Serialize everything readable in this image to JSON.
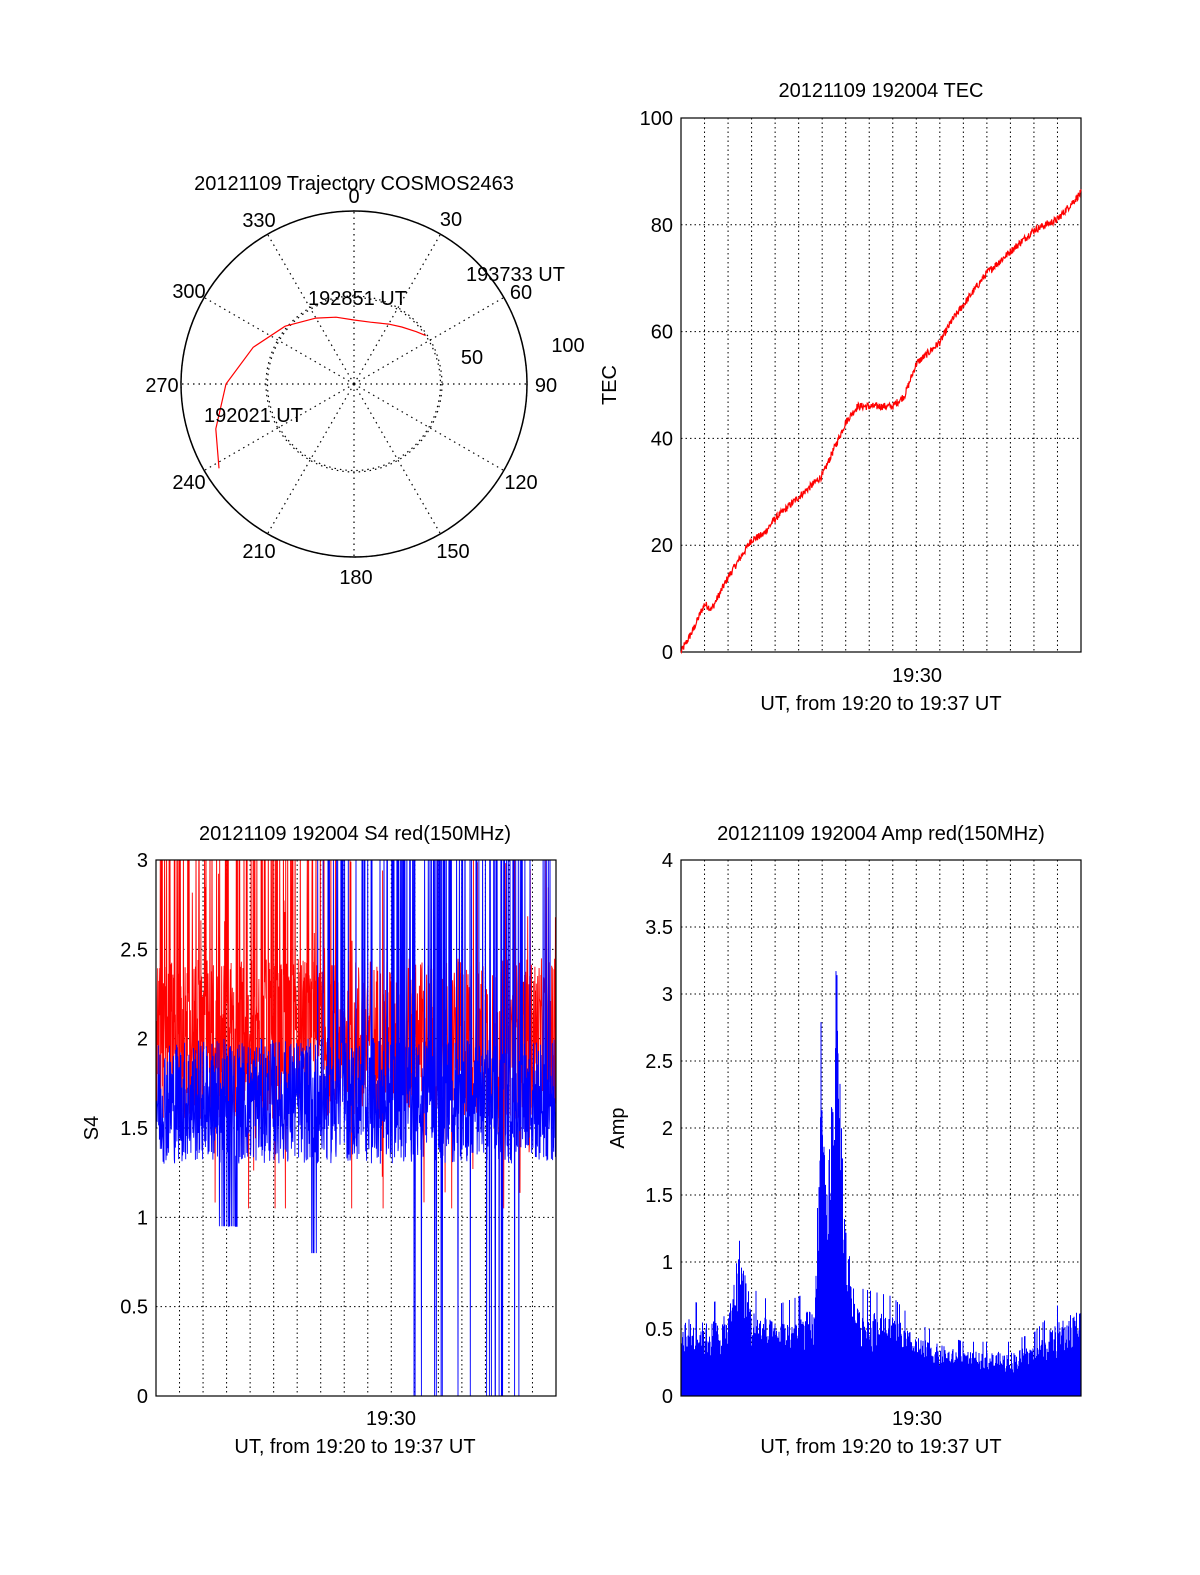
{
  "chart_data": [
    {
      "id": "trajectory",
      "type": "polar",
      "title": "20121109 Trajectory COSMOS2463",
      "azimuth_labels": [
        "0",
        "30",
        "60",
        "90",
        "120",
        "150",
        "180",
        "210",
        "240",
        "270",
        "300",
        "330"
      ],
      "radial_labels": [
        "50",
        "100"
      ],
      "rlim": [
        0,
        100
      ],
      "series": [
        {
          "color": "#ff0000",
          "points": [
            [
              238,
              92
            ],
            [
              252,
              84
            ],
            [
              270,
              74
            ],
            [
              290,
              62
            ],
            [
              310,
              52
            ],
            [
              330,
              44
            ],
            [
              345,
              40
            ],
            [
              360,
              37
            ],
            [
              15,
              37
            ],
            [
              30,
              40
            ],
            [
              40,
              43
            ],
            [
              50,
              47
            ],
            [
              56,
              50
            ]
          ]
        }
      ],
      "annotations": [
        {
          "text": "192021 UT",
          "at": "start"
        },
        {
          "text": "192851 UT",
          "at": "middle"
        },
        {
          "text": "193733 UT",
          "at": "end"
        }
      ]
    },
    {
      "id": "tec",
      "type": "line",
      "title": "20121109 192004 TEC",
      "ylabel": "TEC",
      "xlabel": "UT, from 19:20 to 19:37 UT",
      "xtick_label": "19:30",
      "ylim": [
        0,
        100
      ],
      "yticks": [
        "0",
        "20",
        "40",
        "60",
        "80",
        "100"
      ],
      "grid": true,
      "series": [
        {
          "color": "#ff0000",
          "points": [
            [
              0,
              0
            ],
            [
              0.5,
              4
            ],
            [
              1,
              9
            ],
            [
              1.3,
              8
            ],
            [
              2,
              14
            ],
            [
              3,
              21
            ],
            [
              3.5,
              22
            ],
            [
              4,
              25
            ],
            [
              5,
              29
            ],
            [
              6,
              33
            ],
            [
              6.5,
              38
            ],
            [
              7,
              43
            ],
            [
              7.5,
              46
            ],
            [
              8,
              46
            ],
            [
              9,
              46
            ],
            [
              9.5,
              48
            ],
            [
              10,
              54
            ],
            [
              11,
              58
            ],
            [
              11.5,
              62
            ],
            [
              12,
              65
            ],
            [
              13,
              71
            ],
            [
              14,
              75
            ],
            [
              15,
              79
            ],
            [
              16,
              81
            ],
            [
              17,
              86
            ]
          ]
        }
      ]
    },
    {
      "id": "s4",
      "type": "line",
      "title": "20121109 192004 S4 red(150MHz)",
      "ylabel": "S4",
      "xlabel": "UT, from 19:20 to 19:37 UT",
      "xtick_label": "19:30",
      "ylim": [
        0,
        3
      ],
      "yticks": [
        "0",
        "0.5",
        "1",
        "1.5",
        "2",
        "2.5",
        "3"
      ],
      "grid": true,
      "series": [
        {
          "color": "#ff0000",
          "mean": 2.0,
          "spread": 0.45,
          "range": [
            0,
            17
          ]
        },
        {
          "color": "#0000ff",
          "mean": 1.65,
          "spread": 0.35,
          "range": [
            0,
            17
          ],
          "dropout_range": [
            10.5,
            15.5
          ]
        }
      ]
    },
    {
      "id": "amp",
      "type": "bar",
      "title": "20121109 192004 Amp red(150MHz)",
      "ylabel": "Amp",
      "xlabel": "UT, from 19:20 to 19:37 UT",
      "xtick_label": "19:30",
      "ylim": [
        0,
        4
      ],
      "yticks": [
        "0",
        "0.5",
        "1",
        "1.5",
        "2",
        "2.5",
        "3",
        "3.5",
        "4"
      ],
      "grid": true,
      "series": [
        {
          "color": "#0000ff",
          "envelope": [
            [
              0,
              0.55
            ],
            [
              1,
              0.5
            ],
            [
              2,
              0.55
            ],
            [
              2.5,
              1.1
            ],
            [
              3,
              0.6
            ],
            [
              4,
              0.5
            ],
            [
              5,
              0.55
            ],
            [
              5.7,
              0.6
            ],
            [
              5.9,
              2.2
            ],
            [
              6.2,
              1.4
            ],
            [
              6.6,
              3.0
            ],
            [
              7,
              1.2
            ],
            [
              7.5,
              0.6
            ],
            [
              9,
              0.55
            ],
            [
              10,
              0.4
            ],
            [
              12,
              0.3
            ],
            [
              14,
              0.3
            ],
            [
              15,
              0.35
            ],
            [
              16,
              0.5
            ],
            [
              17,
              0.6
            ]
          ]
        }
      ]
    }
  ]
}
